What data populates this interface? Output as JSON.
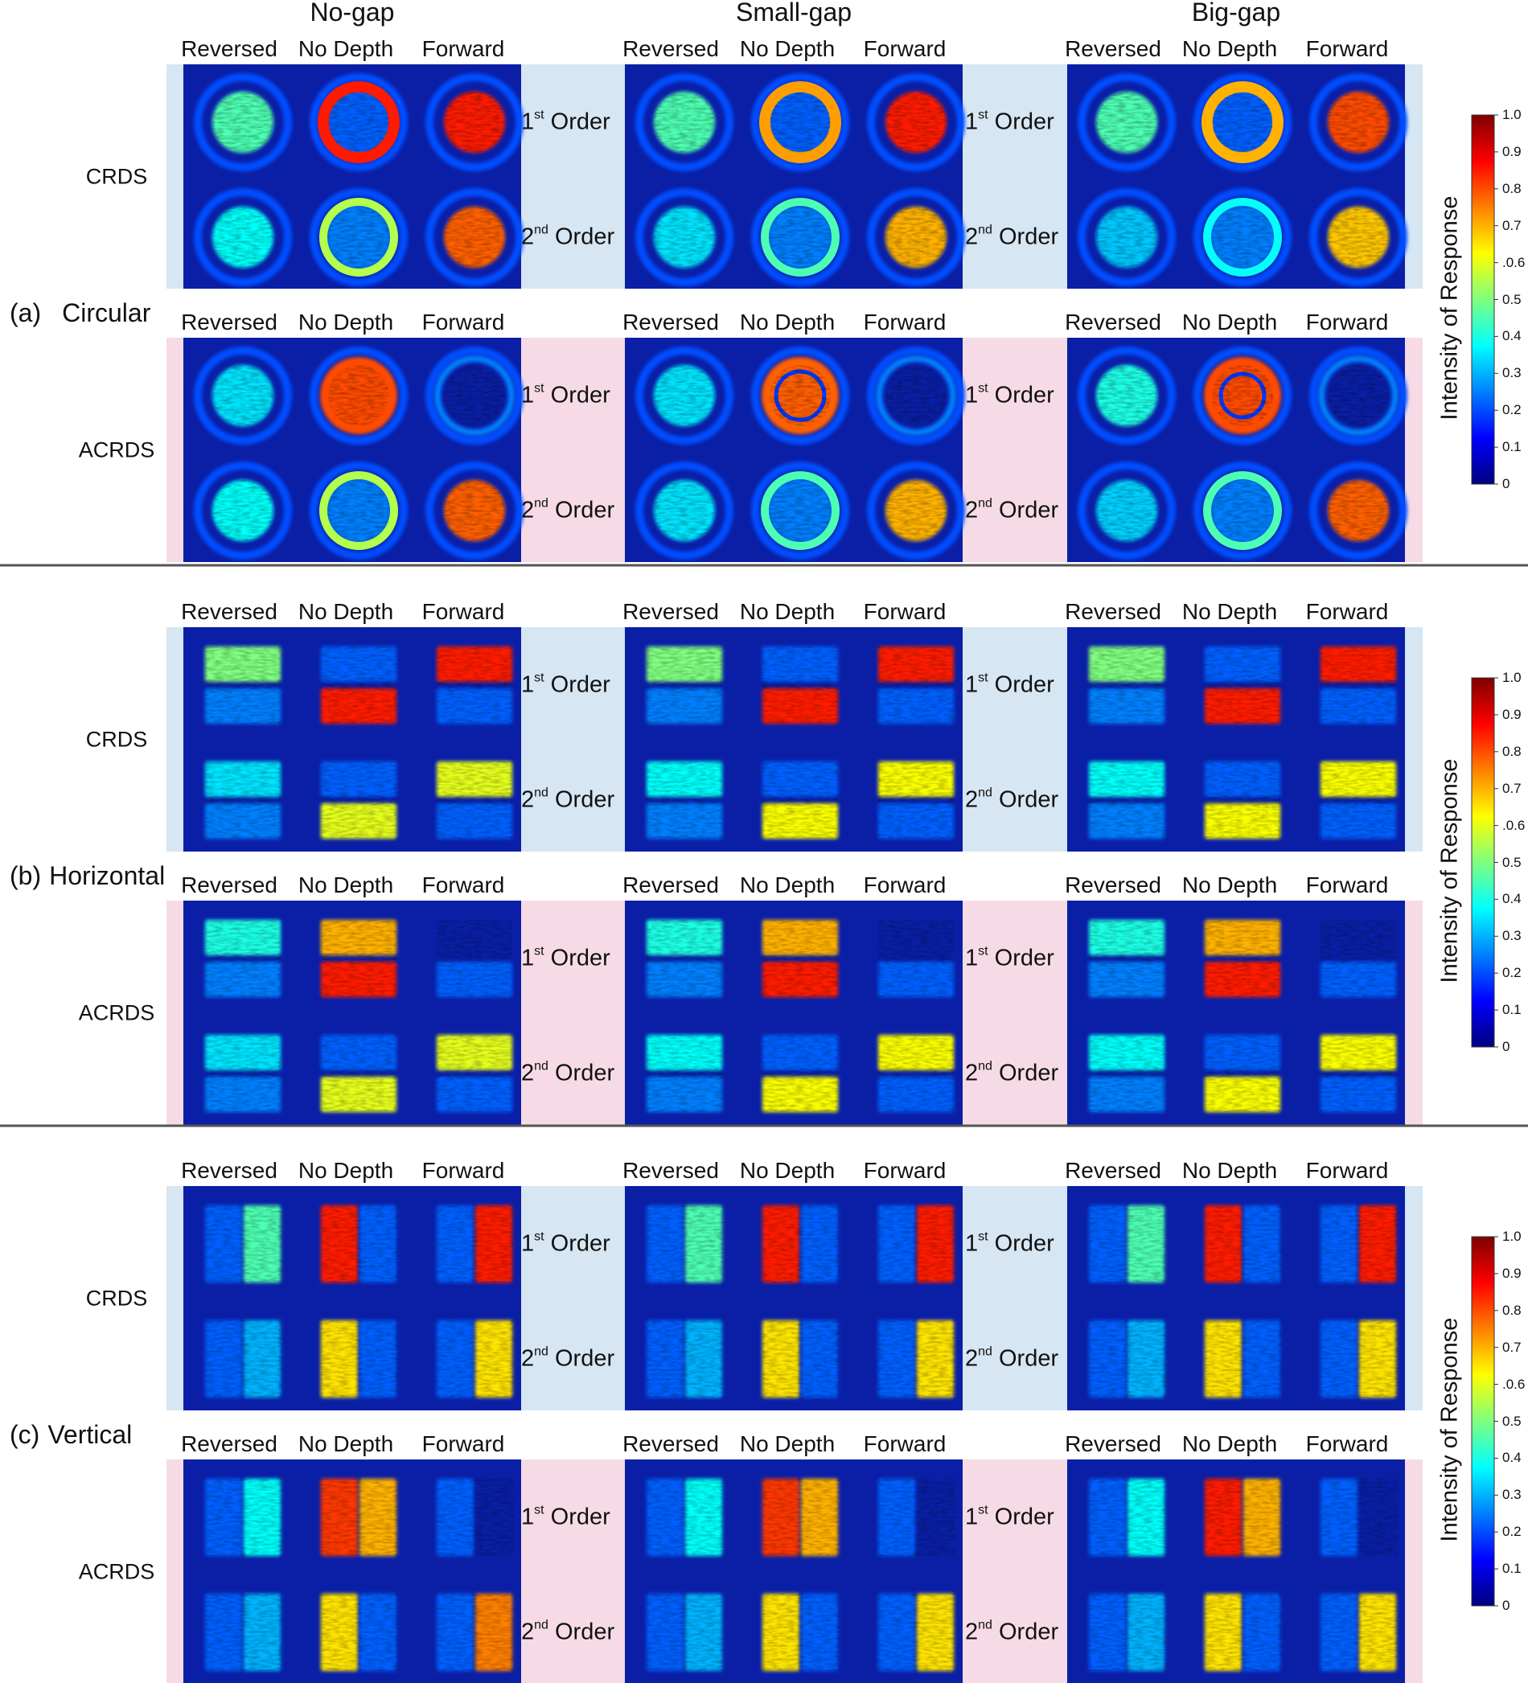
{
  "gap_headers": [
    "No-gap",
    "Small-gap",
    "Big-gap"
  ],
  "column_headers": [
    "Reversed",
    "No Depth",
    "Forward"
  ],
  "row_labels": {
    "crds": "CRDS",
    "acrds": "ACRDS"
  },
  "order_labels": {
    "first": {
      "num": "1",
      "sup": "st",
      "word": "Order"
    },
    "second": {
      "num": "2",
      "sup": "nd",
      "word": "Order"
    }
  },
  "sections": [
    {
      "id": "a",
      "label": "(a)",
      "name": "Circular",
      "shape": "circle"
    },
    {
      "id": "b",
      "label": "(b)",
      "name": "Horizontal",
      "shape": "horizontal"
    },
    {
      "id": "c",
      "label": "(c)",
      "name": "Vertical",
      "shape": "vertical"
    }
  ],
  "colorbar": {
    "title": "Intensity of Response",
    "ticks": [
      "1.0",
      "0.9",
      "0.8",
      "0.7",
      ".0.6",
      "0.5",
      "0.4",
      "0.3",
      "0.2",
      "0.1",
      "0"
    ],
    "colormap": "jet"
  },
  "colors": {
    "crds_band": "#d6e6f2",
    "acrds_band": "#f6dbe6",
    "panel_bg": "#0a1fa6",
    "divider": "#555555"
  },
  "tile_intensity": {
    "circle": {
      "no_gap": {
        "crds_1": [
          0.45,
          0.85,
          0.85
        ],
        "crds_2": [
          0.38,
          0.55,
          0.78
        ],
        "acrds_1": [
          0.35,
          0.8,
          0.15
        ],
        "acrds_2": [
          0.38,
          0.55,
          0.78
        ]
      },
      "small_gap": {
        "crds_1": [
          0.45,
          0.72,
          0.85
        ],
        "crds_2": [
          0.35,
          0.45,
          0.7
        ],
        "acrds_1": [
          0.35,
          0.78,
          0.15
        ],
        "acrds_2": [
          0.35,
          0.45,
          0.7
        ]
      },
      "big_gap": {
        "crds_1": [
          0.45,
          0.7,
          0.8
        ],
        "crds_2": [
          0.32,
          0.38,
          0.68
        ],
        "acrds_1": [
          0.4,
          0.8,
          0.12
        ],
        "acrds_2": [
          0.33,
          0.45,
          0.78
        ]
      }
    },
    "horizontal": {
      "no_gap": {
        "crds_1": [
          0.5,
          0.85,
          0.85
        ],
        "crds_2": [
          0.35,
          0.6,
          0.6
        ],
        "acrds_1": [
          0.4,
          0.85,
          0.15
        ],
        "acrds_2": [
          0.35,
          0.6,
          0.6
        ]
      },
      "small_gap": {
        "crds_1": [
          0.5,
          0.85,
          0.85
        ],
        "crds_2": [
          0.38,
          0.62,
          0.62
        ],
        "acrds_1": [
          0.4,
          0.85,
          0.15
        ],
        "acrds_2": [
          0.38,
          0.62,
          0.62
        ]
      },
      "big_gap": {
        "crds_1": [
          0.5,
          0.85,
          0.85
        ],
        "crds_2": [
          0.38,
          0.62,
          0.62
        ],
        "acrds_1": [
          0.4,
          0.85,
          0.15
        ],
        "acrds_2": [
          0.38,
          0.62,
          0.62
        ]
      }
    },
    "vertical": {
      "no_gap": {
        "crds_1": [
          0.45,
          0.85,
          0.85
        ],
        "crds_2": [
          0.3,
          0.65,
          0.65
        ],
        "acrds_1": [
          0.38,
          0.82,
          0.15
        ],
        "acrds_2": [
          0.3,
          0.65,
          0.75
        ]
      },
      "small_gap": {
        "crds_1": [
          0.45,
          0.85,
          0.85
        ],
        "crds_2": [
          0.3,
          0.65,
          0.65
        ],
        "acrds_1": [
          0.38,
          0.82,
          0.15
        ],
        "acrds_2": [
          0.3,
          0.65,
          0.65
        ]
      },
      "big_gap": {
        "crds_1": [
          0.45,
          0.85,
          0.85
        ],
        "crds_2": [
          0.3,
          0.65,
          0.65
        ],
        "acrds_1": [
          0.38,
          0.85,
          0.15
        ],
        "acrds_2": [
          0.3,
          0.65,
          0.65
        ]
      }
    }
  }
}
